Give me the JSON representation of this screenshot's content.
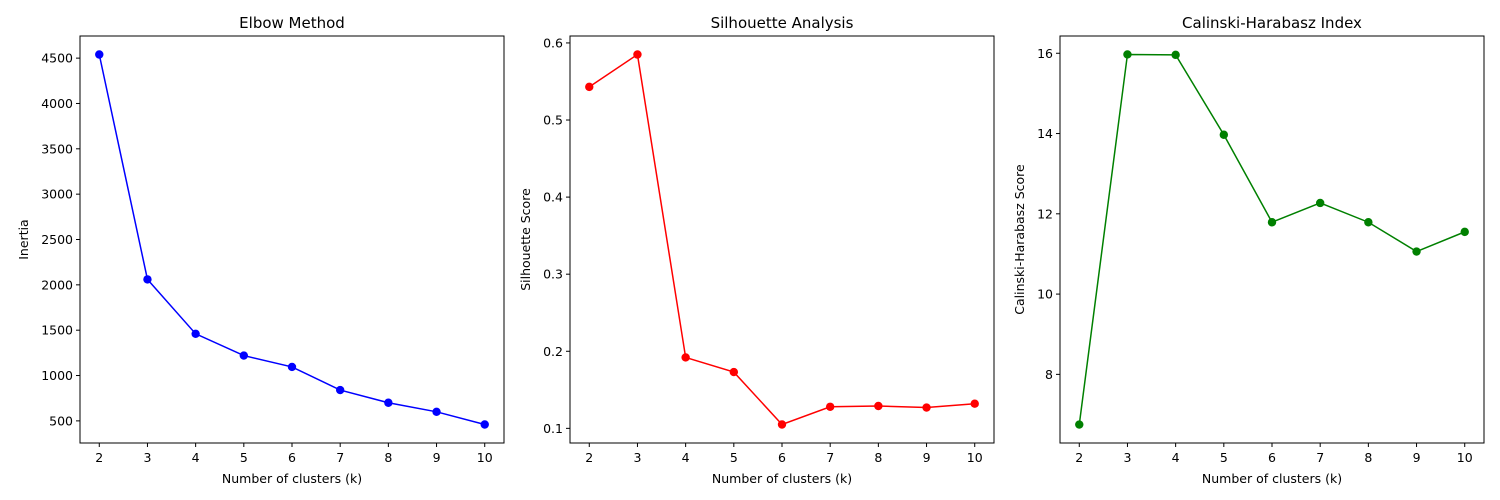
{
  "chart_data": [
    {
      "type": "line",
      "title": "Elbow Method",
      "xlabel": "Number of clusters (k)",
      "ylabel": "Inertia",
      "x": [
        2,
        3,
        4,
        5,
        6,
        7,
        8,
        9,
        10
      ],
      "values": [
        4540,
        2060,
        1460,
        1220,
        1095,
        840,
        700,
        600,
        460
      ],
      "xlim": [
        1.6,
        10.4
      ],
      "ylim": [
        256,
        4744
      ],
      "xticks": [
        2,
        3,
        4,
        5,
        6,
        7,
        8,
        9,
        10
      ],
      "yticks": [
        500,
        1000,
        1500,
        2000,
        2500,
        3000,
        3500,
        4000,
        4500
      ],
      "color": "#0000ff",
      "marker": "circle",
      "grid": false
    },
    {
      "type": "line",
      "title": "Silhouette Analysis",
      "xlabel": "Number of clusters (k)",
      "ylabel": "Silhouette Score",
      "x": [
        2,
        3,
        4,
        5,
        6,
        7,
        8,
        9,
        10
      ],
      "values": [
        0.543,
        0.585,
        0.192,
        0.173,
        0.105,
        0.128,
        0.129,
        0.127,
        0.132
      ],
      "xlim": [
        1.6,
        10.4
      ],
      "ylim": [
        0.081,
        0.609
      ],
      "xticks": [
        2,
        3,
        4,
        5,
        6,
        7,
        8,
        9,
        10
      ],
      "yticks": [
        0.1,
        0.2,
        0.3,
        0.4,
        0.5,
        0.6
      ],
      "ytick_labels": [
        "0.1",
        "0.2",
        "0.3",
        "0.4",
        "0.5",
        "0.6"
      ],
      "color": "#ff0000",
      "marker": "circle",
      "grid": false
    },
    {
      "type": "line",
      "title": "Calinski-Harabasz Index",
      "xlabel": "Number of clusters (k)",
      "ylabel": "Calinski-Harabasz Score",
      "x": [
        2,
        3,
        4,
        5,
        6,
        7,
        8,
        9,
        10
      ],
      "values": [
        6.75,
        15.97,
        15.96,
        13.97,
        11.79,
        12.27,
        11.79,
        11.06,
        11.55
      ],
      "xlim": [
        1.6,
        10.4
      ],
      "ylim": [
        6.29,
        16.43
      ],
      "xticks": [
        2,
        3,
        4,
        5,
        6,
        7,
        8,
        9,
        10
      ],
      "yticks": [
        8,
        10,
        12,
        14,
        16
      ],
      "color": "#008000",
      "marker": "circle",
      "grid": false
    }
  ]
}
